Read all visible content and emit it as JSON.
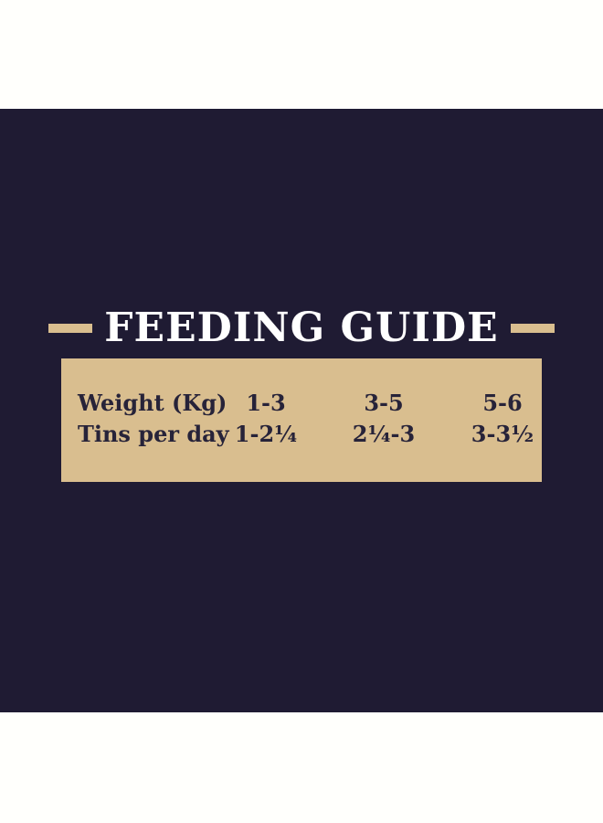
{
  "colors": {
    "page-bg": "#fffffc",
    "navy": "#1f1b33",
    "tan": "#d9be8f",
    "table-text": "#272339",
    "title-white": "#ffffff"
  },
  "title": {
    "text": "FEEDING GUIDE"
  },
  "table": {
    "rows": [
      {
        "label": "Weight (Kg)",
        "values": [
          "1-3",
          "3-5",
          "5-6"
        ]
      },
      {
        "label": "Tins per day",
        "values": [
          "1-2¼",
          "2¼-3",
          "3-3½"
        ]
      }
    ]
  },
  "chart_data": {
    "type": "table",
    "title": "FEEDING GUIDE",
    "row_headers": [
      "Weight (Kg)",
      "Tins per day"
    ],
    "columns": [
      {
        "weight_kg": "1-3",
        "tins_per_day": "1-2¼"
      },
      {
        "weight_kg": "3-5",
        "tins_per_day": "2¼-3"
      },
      {
        "weight_kg": "5-6",
        "tins_per_day": "3-3½"
      }
    ]
  }
}
